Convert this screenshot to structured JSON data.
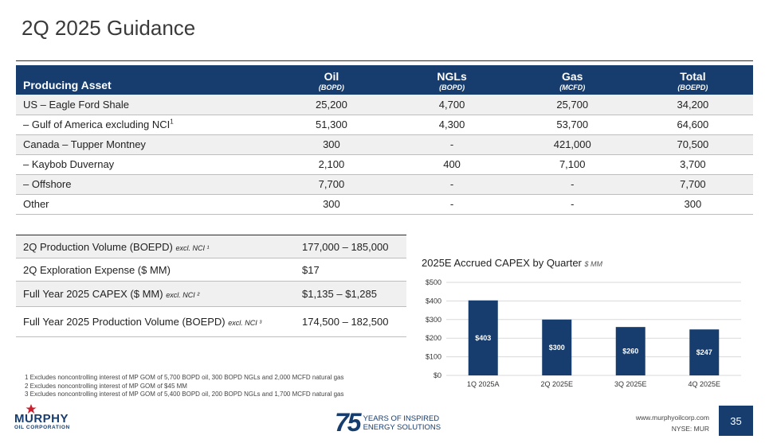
{
  "title": "2Q 2025 Guidance",
  "production_table": {
    "headers": [
      {
        "label": "Producing Asset",
        "unit": ""
      },
      {
        "label": "Oil",
        "unit": "(BOPD)"
      },
      {
        "label": "NGLs",
        "unit": "(BOPD)"
      },
      {
        "label": "Gas",
        "unit": "(MCFD)"
      },
      {
        "label": "Total",
        "unit": "(BOEPD)"
      }
    ],
    "rows": [
      {
        "asset": "US – Eagle Ford Shale",
        "sup": "",
        "oil": "25,200",
        "ngls": "4,700",
        "gas": "25,700",
        "total": "34,200"
      },
      {
        "asset": "– Gulf of America excluding NCI",
        "sup": "1",
        "oil": "51,300",
        "ngls": "4,300",
        "gas": "53,700",
        "total": "64,600"
      },
      {
        "asset": "Canada – Tupper Montney",
        "sup": "",
        "oil": "300",
        "ngls": "-",
        "gas": "421,000",
        "total": "70,500"
      },
      {
        "asset": "– Kaybob Duvernay",
        "sup": "",
        "oil": "2,100",
        "ngls": "400",
        "gas": "7,100",
        "total": "3,700"
      },
      {
        "asset": "– Offshore",
        "sup": "",
        "oil": "7,700",
        "ngls": "-",
        "gas": "-",
        "total": "7,700"
      },
      {
        "asset": "Other",
        "sup": "",
        "oil": "300",
        "ngls": "-",
        "gas": "-",
        "total": "300"
      }
    ]
  },
  "guidance": [
    {
      "label": "2Q Production Volume (BOEPD)",
      "note": "excl. NCI ¹",
      "value": "177,000 – 185,000"
    },
    {
      "label": "2Q Exploration Expense ($ MM)",
      "note": "",
      "value": "$17"
    },
    {
      "label": "Full Year 2025 CAPEX ($ MM)",
      "note": "excl. NCI ²",
      "value": "$1,135 – $1,285"
    },
    {
      "label": "Full Year 2025 Production Volume (BOEPD)",
      "note": "excl. NCI ³",
      "value": "174,500 – 182,500"
    }
  ],
  "footnotes": [
    "1 Excludes noncontrolling interest of MP GOM of 5,700 BOPD oil, 300 BOPD NGLs and 2,000 MCFD natural gas",
    "2 Excludes noncontrolling interest of MP GOM of $45 MM",
    "3 Excludes noncontrolling interest of MP GOM of 5,400 BOPD oil, 200 BOPD NGLs and 1,700 MCFD natural gas"
  ],
  "chart_data": {
    "type": "bar",
    "title": "2025E Accrued CAPEX by Quarter",
    "unit": "$ MM",
    "categories": [
      "1Q 2025A",
      "2Q 2025E",
      "3Q 2025E",
      "4Q 2025E"
    ],
    "values": [
      403,
      300,
      260,
      247
    ],
    "value_labels": [
      "$403",
      "$300",
      "$260",
      "$247"
    ],
    "ylim": [
      0,
      500
    ],
    "yticks": [
      0,
      100,
      200,
      300,
      400,
      500
    ],
    "ytick_labels": [
      "$0",
      "$100",
      "$200",
      "$300",
      "$400",
      "$500"
    ],
    "grid": true,
    "bar_color": "#173d6e"
  },
  "footer": {
    "logo_word": "MURPHY",
    "logo_sub": "OIL CORPORATION",
    "anniv_num": "75",
    "anniv_line1": "YEARS OF INSPIRED",
    "anniv_line2": "ENERGY SOLUTIONS",
    "website": "www.murphyoilcorp.com",
    "ticker": "NYSE: MUR",
    "page": "35"
  },
  "colors": {
    "navy": "#173d6e",
    "shade": "#f0f0f0",
    "logo_star": "#c8202f"
  }
}
